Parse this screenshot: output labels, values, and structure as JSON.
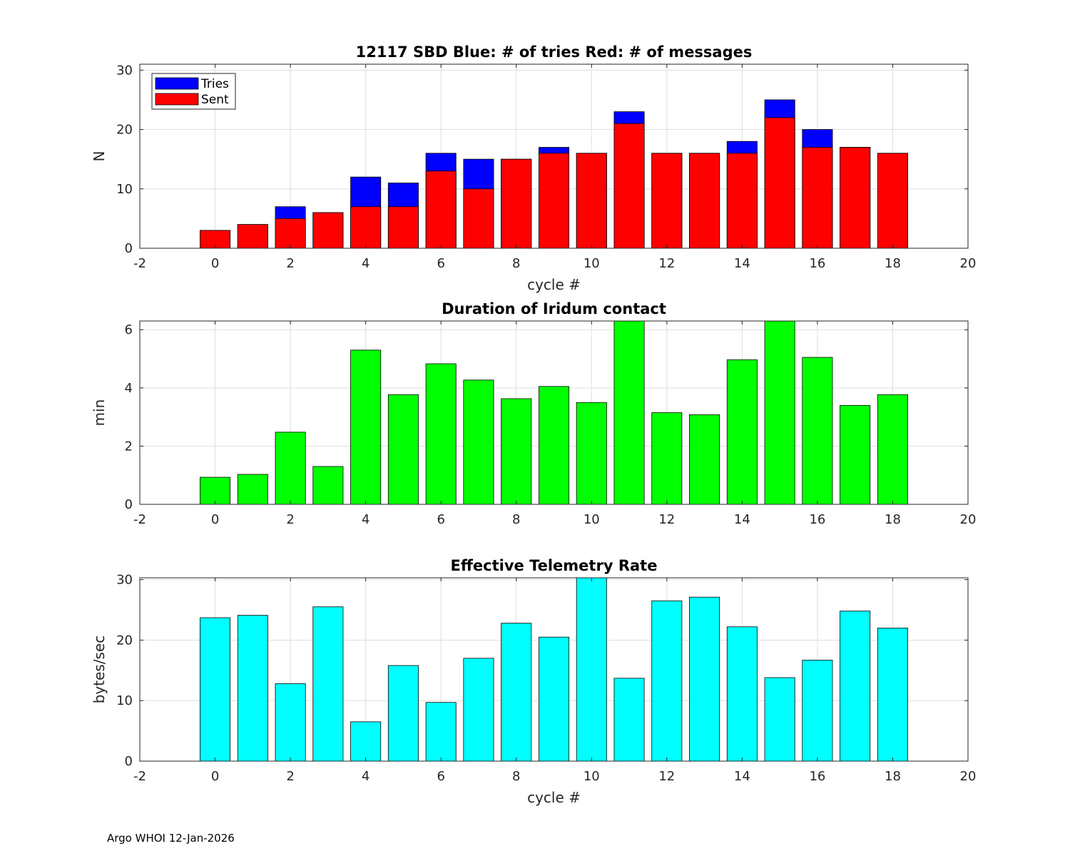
{
  "footer": "Argo WHOI 12-Jan-2026",
  "colors": {
    "tries": "#0000ff",
    "sent": "#ff0000",
    "duration": "#00ff00",
    "rate": "#00ffff",
    "grid": "#dedede",
    "axis": "#262626",
    "bar_edge": "#000000"
  },
  "chart_data": [
    {
      "id": "sbd",
      "type": "bar",
      "title": "12117 SBD  Blue: # of tries   Red: # of messages",
      "xlabel": "cycle #",
      "ylabel": "N",
      "xlim": [
        -2,
        20
      ],
      "ylim": [
        0,
        31
      ],
      "xticks": [
        -2,
        0,
        2,
        4,
        6,
        8,
        10,
        12,
        14,
        16,
        18,
        20
      ],
      "yticks": [
        0,
        10,
        20,
        30
      ],
      "grid": true,
      "legend": {
        "placement": "top-left",
        "entries": [
          "Tries",
          "Sent"
        ]
      },
      "x": [
        0,
        1,
        2,
        3,
        4,
        5,
        6,
        7,
        8,
        9,
        10,
        11,
        12,
        13,
        14,
        15,
        16,
        17,
        18
      ],
      "series": [
        {
          "name": "Tries",
          "color_key": "tries",
          "values": [
            3,
            4,
            7,
            6,
            12,
            11,
            16,
            15,
            15,
            17,
            16,
            23,
            16,
            16,
            18,
            25,
            20,
            17,
            16
          ]
        },
        {
          "name": "Sent",
          "color_key": "sent",
          "values": [
            3,
            4,
            5,
            6,
            7,
            7,
            13,
            10,
            15,
            16,
            16,
            21,
            16,
            16,
            16,
            22,
            17,
            17,
            16
          ]
        }
      ]
    },
    {
      "id": "duration",
      "type": "bar",
      "title": "Duration of Iridum contact",
      "xlabel": "",
      "ylabel": "min",
      "xlim": [
        -2,
        20
      ],
      "ylim": [
        0,
        6.3
      ],
      "xticks": [
        -2,
        0,
        2,
        4,
        6,
        8,
        10,
        12,
        14,
        16,
        18,
        20
      ],
      "yticks": [
        0,
        2,
        4,
        6
      ],
      "grid": true,
      "x": [
        0,
        1,
        2,
        3,
        4,
        5,
        6,
        7,
        8,
        9,
        10,
        11,
        12,
        13,
        14,
        15,
        16,
        17,
        18
      ],
      "series": [
        {
          "name": "Duration",
          "color_key": "duration",
          "values": [
            0.93,
            1.03,
            2.48,
            1.3,
            5.3,
            3.77,
            4.83,
            4.27,
            3.63,
            4.05,
            3.5,
            6.3,
            3.15,
            3.08,
            4.97,
            6.3,
            5.05,
            3.4,
            3.77
          ]
        }
      ]
    },
    {
      "id": "rate",
      "type": "bar",
      "title": "Effective Telemetry Rate",
      "xlabel": "cycle #",
      "ylabel": "bytes/sec",
      "xlim": [
        -2,
        20
      ],
      "ylim": [
        0,
        30.3
      ],
      "xticks": [
        -2,
        0,
        2,
        4,
        6,
        8,
        10,
        12,
        14,
        16,
        18,
        20
      ],
      "yticks": [
        0,
        10,
        20,
        30
      ],
      "grid": true,
      "x": [
        0,
        1,
        2,
        3,
        4,
        5,
        6,
        7,
        8,
        9,
        10,
        11,
        12,
        13,
        14,
        15,
        16,
        17,
        18
      ],
      "series": [
        {
          "name": "Rate",
          "color_key": "rate",
          "values": [
            23.7,
            24.1,
            12.8,
            25.5,
            6.5,
            15.8,
            9.7,
            17.0,
            22.8,
            20.5,
            30.3,
            13.7,
            26.5,
            27.1,
            22.2,
            13.8,
            16.7,
            24.8,
            22.0
          ]
        }
      ]
    }
  ]
}
